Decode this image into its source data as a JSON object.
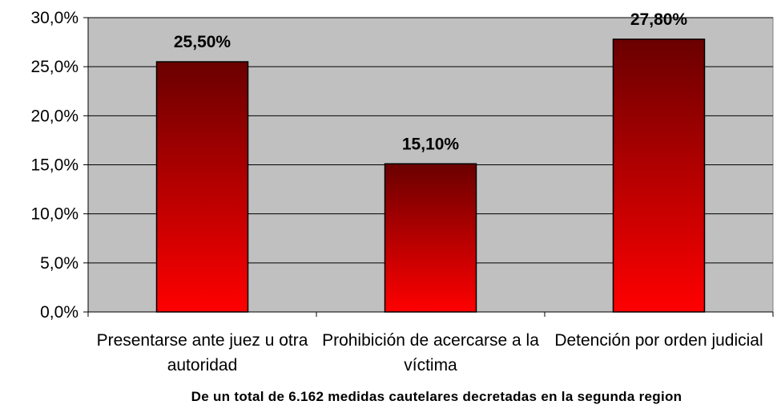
{
  "chart_data": {
    "type": "bar",
    "categories": [
      "Presentarse ante juez u otra autoridad",
      "Prohibición de acercarse a la víctima",
      "Detención por orden judicial"
    ],
    "values": [
      25.5,
      15.1,
      27.8
    ],
    "value_labels": [
      "25,50%",
      "15,10%",
      "27,80%"
    ],
    "color": "#ff0000",
    "ylim": [
      0,
      30
    ],
    "yticks": [
      {
        "value": 0,
        "label": "0,0%"
      },
      {
        "value": 5,
        "label": "5,0%"
      },
      {
        "value": 10,
        "label": "10,0%"
      },
      {
        "value": 15,
        "label": "15,0%"
      },
      {
        "value": 20,
        "label": "20,0%"
      },
      {
        "value": 25,
        "label": "25,0%"
      },
      {
        "value": 30,
        "label": "30,0%"
      }
    ],
    "grid": true,
    "note": "De un total de 6.162 medidas cautelares decretadas en la segunda region"
  }
}
